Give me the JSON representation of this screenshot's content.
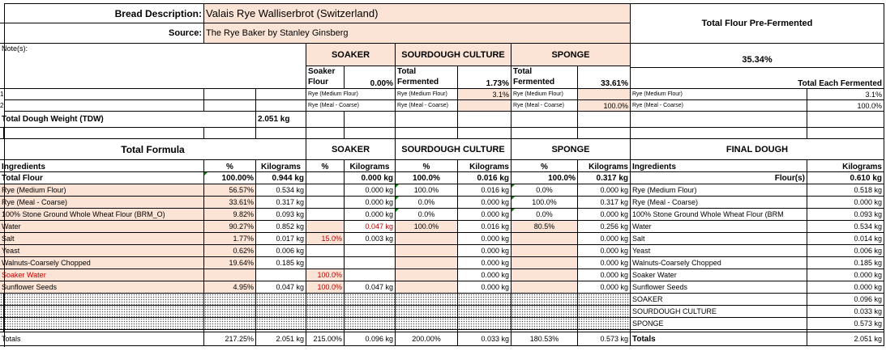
{
  "header": {
    "bread_label": "Bread Description:",
    "bread_value": "Valais Rye   Walliserbrot (Switzerland)",
    "source_label": "Source:",
    "source_value": "The Rye Baker by Stanley Ginsberg",
    "notes_label": "Note(s):",
    "pre_ferment_title": "Total Flour Pre-Fermented",
    "pre_ferment_pct": "35.34%",
    "each_fermented_title": "Total Each Fermented",
    "row_num_1": "1",
    "row_num_2": "2",
    "tdw_label": "Total Dough Weight (TDW)",
    "tdw_value": "2.051 kg"
  },
  "sections": {
    "soaker": "SOAKER",
    "sourdough": "SOURDOUGH CULTURE",
    "sponge": "SPONGE",
    "final_dough": "FINAL DOUGH",
    "total_formula": "Total Formula"
  },
  "preferment": {
    "soaker_flour_label1": "Soaker",
    "soaker_flour_label2": "Flour",
    "soaker_flour_pct": "0.00%",
    "sourdough_label1": "Total",
    "sourdough_label2": "Fermented",
    "sourdough_pct": "1.73%",
    "sponge_label1": "Total",
    "sponge_label2": "Fermented",
    "sponge_pct": "33.61%",
    "flour1": "Rye (Medium Flour)",
    "flour2": "Rye (Meal - Coarse)",
    "sourdough_flour1_pct": "3.1%",
    "sponge_flour2_pct": "100.0%",
    "each1_pct": "3.1%",
    "each2_pct": "100.0%"
  },
  "columns": {
    "ingredients": "Ingredients",
    "pct": "%",
    "kg": "Kilograms",
    "flours": "Flour(s)"
  },
  "total_flour": {
    "label": "Total Flour",
    "pct": "100.00%",
    "kg": "0.944 kg",
    "soaker_kg": "0.000 kg",
    "sd_pct": "100.0%",
    "sd_kg": "0.016 kg",
    "sp_pct": "100.0%",
    "sp_kg": "0.317 kg",
    "final_kg": "0.610 kg"
  },
  "rows": [
    {
      "name": "Rye (Medium Flour)",
      "pct": "56.57%",
      "kg": "0.534 kg",
      "sk_pct": "",
      "sk_kg": "0.000 kg",
      "sd_pct": "100.0%",
      "sd_kg": "0.016 kg",
      "sp_pct": "0.0%",
      "sp_kg": "0.000 kg",
      "fd_name": "Rye (Medium Flour)",
      "fd_kg": "0.518 kg"
    },
    {
      "name": "Rye (Meal - Coarse)",
      "pct": "33.61%",
      "kg": "0.317 kg",
      "sk_pct": "",
      "sk_kg": "0.000 kg",
      "sd_pct": "0.0%",
      "sd_kg": "0.000 kg",
      "sp_pct": "100.0%",
      "sp_kg": "0.317 kg",
      "fd_name": "Rye (Meal - Coarse)",
      "fd_kg": "0.000 kg"
    },
    {
      "name": "100% Stone Ground Whole Wheat Flour (BRM_O)",
      "pct": "9.82%",
      "kg": "0.093 kg",
      "sk_pct": "",
      "sk_kg": "0.000 kg",
      "sd_pct": "0.0%",
      "sd_kg": "0.000 kg",
      "sp_pct": "0.0%",
      "sp_kg": "0.000 kg",
      "fd_name": "100% Stone Ground Whole Wheat Flour (BRM",
      "fd_kg": "0.093 kg"
    },
    {
      "name": "Water",
      "pct": "90.27%",
      "kg": "0.852 kg",
      "sk_pct": "",
      "sk_kg": "0.047 kg",
      "sd_pct": "100.0%",
      "sd_kg": "0.016 kg",
      "sp_pct": "80.5%",
      "sp_kg": "0.256 kg",
      "fd_name": "Water",
      "fd_kg": "0.534 kg"
    },
    {
      "name": "Salt",
      "pct": "1.77%",
      "kg": "0.017 kg",
      "sk_pct": "15.0%",
      "sk_kg": "0.003 kg",
      "sd_pct": "",
      "sd_kg": "0.000 kg",
      "sp_pct": "",
      "sp_kg": "0.000 kg",
      "fd_name": "Salt",
      "fd_kg": "0.014 kg"
    },
    {
      "name": "Yeast",
      "pct": "0.62%",
      "kg": "0.006 kg",
      "sk_pct": "",
      "sk_kg": "",
      "sd_pct": "",
      "sd_kg": "0.000 kg",
      "sp_pct": "",
      "sp_kg": "0.000 kg",
      "fd_name": "Yeast",
      "fd_kg": "0.006 kg"
    },
    {
      "name": "Walnuts-Coarsely Chopped",
      "pct": "19.64%",
      "kg": "0.185 kg",
      "sk_pct": "",
      "sk_kg": "",
      "sd_pct": "",
      "sd_kg": "0.000 kg",
      "sp_pct": "",
      "sp_kg": "0.000 kg",
      "fd_name": "Walnuts-Coarsely Chopped",
      "fd_kg": "0.185 kg"
    },
    {
      "name": "Soaker Water",
      "pct": "",
      "kg": "",
      "sk_pct": "100.0%",
      "sk_kg": "",
      "sd_pct": "",
      "sd_kg": "0.000 kg",
      "sp_pct": "",
      "sp_kg": "0.000 kg",
      "fd_name": "Soaker Water",
      "fd_kg": "0.000 kg"
    },
    {
      "name": "Sunflower Seeds",
      "pct": "4.95%",
      "kg": "0.047 kg",
      "sk_pct": "100.0%",
      "sk_kg": "0.047 kg",
      "sd_pct": "",
      "sd_kg": "0.000 kg",
      "sp_pct": "",
      "sp_kg": "0.000 kg",
      "fd_name": "Sunflower Seeds",
      "fd_kg": "0.000 kg"
    }
  ],
  "preferments": [
    {
      "name": "SOAKER",
      "kg": "0.096 kg"
    },
    {
      "name": "SOURDOUGH CULTURE",
      "kg": "0.033 kg"
    },
    {
      "name": "SPONGE",
      "kg": "0.573 kg"
    }
  ],
  "totals": {
    "label": "Totals",
    "pct": "217.25%",
    "kg": "2.051 kg",
    "sk_pct": "215.00%",
    "sk_kg": "0.096 kg",
    "sd_pct": "200.00%",
    "sd_kg": "0.033 kg",
    "sp_pct": "180.53%",
    "sp_kg": "0.573 kg",
    "fd_label": "Totals",
    "fd_kg": "2.051 kg"
  },
  "colors": {
    "highlight": "#fbe4d5",
    "red_text": "#c00000",
    "marker": "#008000"
  }
}
